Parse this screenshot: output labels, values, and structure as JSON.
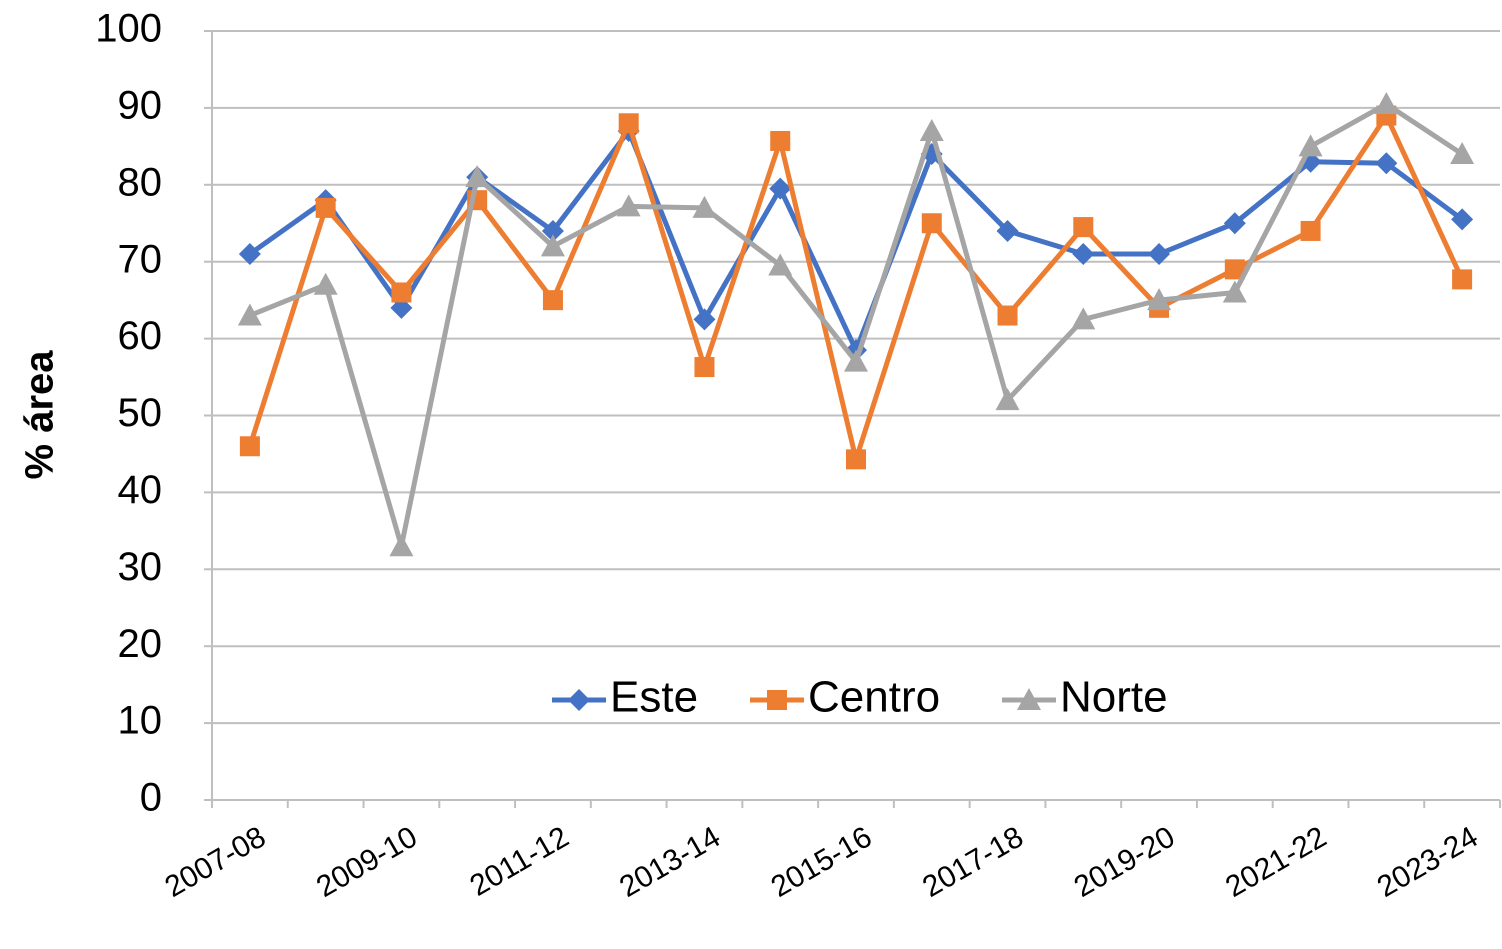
{
  "chart_data": {
    "type": "line",
    "y_label": "% área",
    "categories": [
      "2007-08",
      null,
      "2009-10",
      null,
      "2011-12",
      null,
      "2013-14",
      null,
      "2015-16",
      null,
      "2017-18",
      null,
      "2019-20",
      null,
      "2021-22",
      null,
      "2023-24"
    ],
    "series": [
      {
        "name": "Este",
        "color": "#4472c4",
        "marker": "diamond",
        "values": [
          71,
          78,
          64,
          81,
          74,
          87,
          62.5,
          79.5,
          58.5,
          84,
          74,
          71,
          71,
          75,
          83,
          82.8,
          75.5
        ]
      },
      {
        "name": "Centro",
        "color": "#ed7d31",
        "marker": "square",
        "values": [
          46,
          77,
          66,
          78,
          65,
          88,
          56.3,
          85.7,
          44.3,
          75,
          63,
          74.5,
          64,
          69,
          74,
          89,
          67.7
        ]
      },
      {
        "name": "Norte",
        "color": "#a5a5a5",
        "marker": "triangle",
        "values": [
          63,
          67,
          33,
          81,
          72,
          77.2,
          77,
          69.5,
          57,
          87,
          52,
          62.5,
          65,
          66,
          85,
          90.5,
          84
        ]
      }
    ],
    "ylim": [
      0,
      100
    ],
    "yticks": [
      0,
      10,
      20,
      30,
      40,
      50,
      60,
      70,
      80,
      90,
      100
    ],
    "grid": true
  }
}
